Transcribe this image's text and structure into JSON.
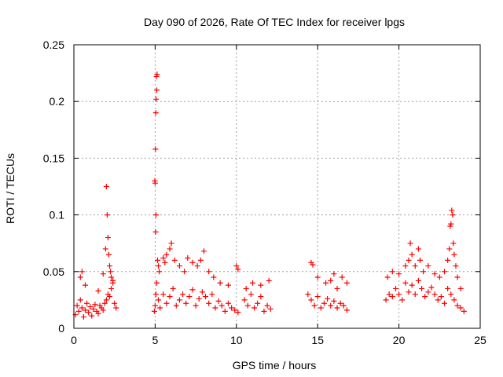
{
  "chart_data": {
    "type": "scatter",
    "title": "Day 090 of 2026, Rate Of TEC Index for receiver lpgs",
    "xlabel": "GPS time / hours",
    "ylabel": "ROTI / TECUs",
    "xlim": [
      0,
      25
    ],
    "ylim": [
      0,
      0.25
    ],
    "xticks": [
      0,
      5,
      10,
      15,
      20,
      25
    ],
    "xtick_labels": [
      "0",
      "5",
      "10",
      "15",
      "20",
      "25"
    ],
    "yticks": [
      0,
      0.05,
      0.1,
      0.15,
      0.2,
      0.25
    ],
    "ytick_labels": [
      "0",
      "0.05",
      "0.1",
      "0.15",
      "0.2",
      "0.25"
    ],
    "grid": true,
    "marker": "+",
    "colors": {
      "series": "#ff0000",
      "grid": "#a0a0a0",
      "axis": "#000000"
    },
    "series": [
      {
        "name": "ROTI",
        "x": [
          0.1,
          0.2,
          0.3,
          0.4,
          0.5,
          0.6,
          0.7,
          0.8,
          0.9,
          1.0,
          1.1,
          1.2,
          1.3,
          1.4,
          1.5,
          1.6,
          1.7,
          1.8,
          1.9,
          2.0,
          2.1,
          2.2,
          2.3,
          2.4,
          2.5,
          2.6,
          0.4,
          0.5,
          0.7,
          1.5,
          1.8,
          1.95,
          2.0,
          2.05,
          2.1,
          2.15,
          2.2,
          2.25,
          2.3,
          2.4,
          4.95,
          5.0,
          5.05,
          5.1,
          5.2,
          5.3,
          5.5,
          5.7,
          5.9,
          6.1,
          6.3,
          6.5,
          6.7,
          6.9,
          7.1,
          7.3,
          7.5,
          7.7,
          7.9,
          8.1,
          8.3,
          8.5,
          8.7,
          8.9,
          9.1,
          9.3,
          9.5,
          9.7,
          9.9,
          10.1,
          4.98,
          5.0,
          5.02,
          5.04,
          5.06,
          5.1,
          5.12,
          5.08,
          5.05,
          5.03,
          5.15,
          5.2,
          5.25,
          5.5,
          5.6,
          5.7,
          5.9,
          6.0,
          6.2,
          6.5,
          6.8,
          7.0,
          7.3,
          7.6,
          7.8,
          8.0,
          8.3,
          8.6,
          9.0,
          9.5,
          10.0,
          10.1,
          10.5,
          10.7,
          10.9,
          11.1,
          11.3,
          11.5,
          11.7,
          11.9,
          12.1,
          10.6,
          11.0,
          11.5,
          12.0,
          14.4,
          14.6,
          14.8,
          15.0,
          15.2,
          15.4,
          15.6,
          15.8,
          16.0,
          16.2,
          16.4,
          16.6,
          16.8,
          14.6,
          14.7,
          15.0,
          15.5,
          15.8,
          16.0,
          16.2,
          16.5,
          16.8,
          19.2,
          19.4,
          19.6,
          19.8,
          20.0,
          20.2,
          20.4,
          20.6,
          20.8,
          21.0,
          21.2,
          21.4,
          21.6,
          21.8,
          22.0,
          22.2,
          22.4,
          22.6,
          22.8,
          23.0,
          23.2,
          23.4,
          23.6,
          23.8,
          24.0,
          19.3,
          19.6,
          20.0,
          20.4,
          20.6,
          20.7,
          20.8,
          21.0,
          21.2,
          21.3,
          21.5,
          21.8,
          22.2,
          22.5,
          22.8,
          23.0,
          23.1,
          23.15,
          23.2,
          23.25,
          23.3,
          23.35,
          23.4,
          23.5,
          23.6,
          23.8
        ],
        "y": [
          0.012,
          0.02,
          0.015,
          0.025,
          0.018,
          0.01,
          0.016,
          0.022,
          0.014,
          0.019,
          0.011,
          0.017,
          0.021,
          0.015,
          0.013,
          0.02,
          0.018,
          0.016,
          0.022,
          0.025,
          0.03,
          0.028,
          0.035,
          0.04,
          0.022,
          0.018,
          0.045,
          0.05,
          0.038,
          0.033,
          0.048,
          0.07,
          0.125,
          0.1,
          0.08,
          0.065,
          0.055,
          0.05,
          0.045,
          0.042,
          0.015,
          0.02,
          0.03,
          0.04,
          0.025,
          0.018,
          0.03,
          0.022,
          0.028,
          0.035,
          0.02,
          0.025,
          0.03,
          0.022,
          0.028,
          0.034,
          0.02,
          0.026,
          0.032,
          0.028,
          0.022,
          0.03,
          0.018,
          0.024,
          0.02,
          0.015,
          0.022,
          0.018,
          0.016,
          0.014,
          0.13,
          0.128,
          0.158,
          0.19,
          0.202,
          0.21,
          0.224,
          0.222,
          0.1,
          0.085,
          0.06,
          0.055,
          0.05,
          0.062,
          0.058,
          0.065,
          0.07,
          0.075,
          0.06,
          0.055,
          0.05,
          0.062,
          0.058,
          0.055,
          0.06,
          0.068,
          0.05,
          0.045,
          0.04,
          0.038,
          0.055,
          0.052,
          0.025,
          0.02,
          0.03,
          0.018,
          0.022,
          0.028,
          0.015,
          0.02,
          0.017,
          0.035,
          0.04,
          0.038,
          0.042,
          0.03,
          0.025,
          0.02,
          0.028,
          0.018,
          0.022,
          0.026,
          0.02,
          0.024,
          0.018,
          0.022,
          0.02,
          0.016,
          0.058,
          0.056,
          0.045,
          0.04,
          0.042,
          0.048,
          0.035,
          0.045,
          0.04,
          0.025,
          0.03,
          0.028,
          0.035,
          0.03,
          0.025,
          0.04,
          0.032,
          0.038,
          0.03,
          0.042,
          0.035,
          0.028,
          0.032,
          0.036,
          0.03,
          0.025,
          0.028,
          0.022,
          0.035,
          0.03,
          0.025,
          0.02,
          0.018,
          0.015,
          0.045,
          0.05,
          0.048,
          0.055,
          0.06,
          0.075,
          0.065,
          0.055,
          0.07,
          0.06,
          0.05,
          0.055,
          0.048,
          0.045,
          0.05,
          0.06,
          0.07,
          0.09,
          0.092,
          0.104,
          0.1,
          0.075,
          0.065,
          0.055,
          0.045,
          0.035
        ]
      }
    ]
  }
}
